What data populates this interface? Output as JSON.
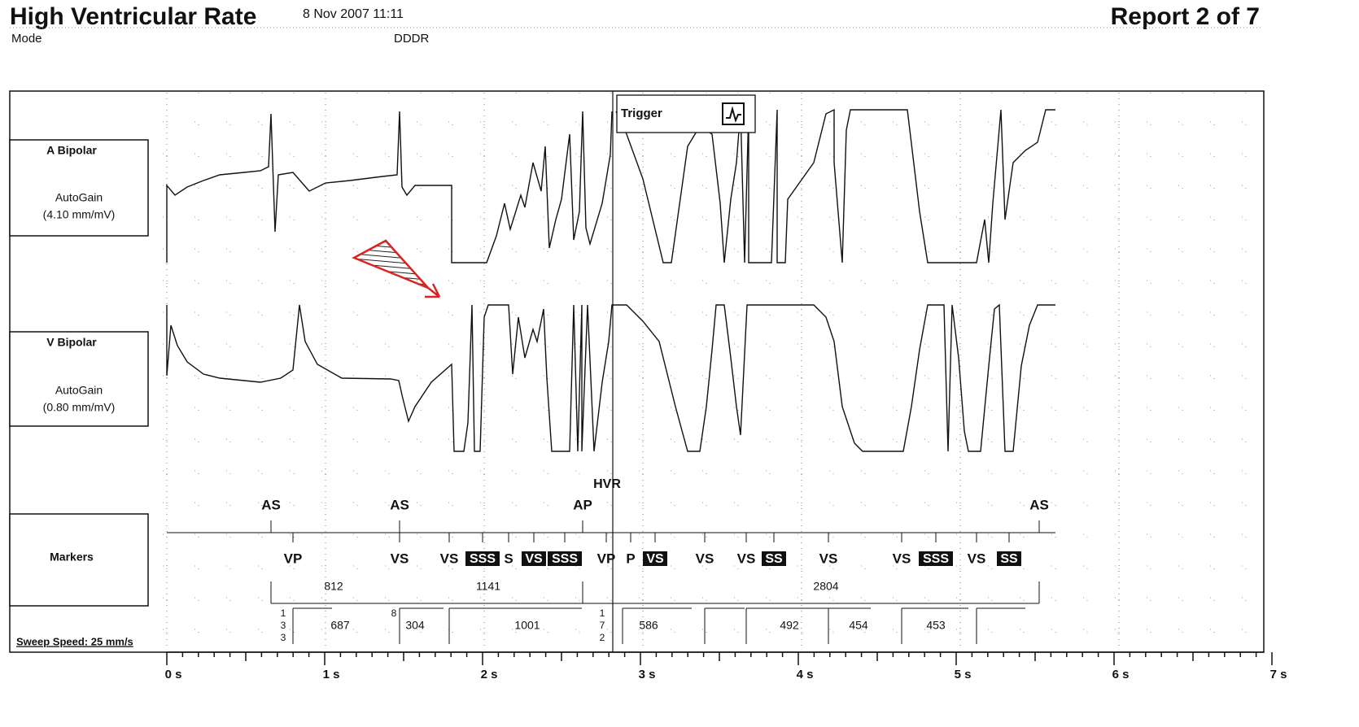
{
  "header": {
    "title": "High Ventricular Rate",
    "datetime": "8 Nov 2007 11:11",
    "report": "Report 2 of 7",
    "mode_label": "Mode",
    "mode": "DDDR"
  },
  "channels": [
    {
      "name": "A Bipolar",
      "gain": "AutoGain",
      "scale": "(4.10 mm/mV)"
    },
    {
      "name": "V Bipolar",
      "gain": "AutoGain",
      "scale": "(0.80 mm/mV)"
    },
    {
      "name": "Markers"
    }
  ],
  "trigger": "Trigger",
  "hvr": "HVR",
  "atrial_markers": [
    "AS",
    "AS",
    "AP",
    "AS"
  ],
  "ventricular_markers": [
    {
      "label": "VP",
      "boxed": false
    },
    {
      "label": "VS",
      "boxed": false
    },
    {
      "label": "VS",
      "boxed": false
    },
    {
      "label": "SSS",
      "boxed": true
    },
    {
      "label": "S",
      "boxed": false
    },
    {
      "label": "VS",
      "boxed": true
    },
    {
      "label": "SSS",
      "boxed": true
    },
    {
      "label": "VP",
      "boxed": false
    },
    {
      "label": "P",
      "boxed": false
    },
    {
      "label": "VS",
      "boxed": true
    },
    {
      "label": "VS",
      "boxed": false
    },
    {
      "label": "VS",
      "boxed": false
    },
    {
      "label": "SS",
      "boxed": true
    },
    {
      "label": "VS",
      "boxed": false
    },
    {
      "label": "VS",
      "boxed": false
    },
    {
      "label": "SSS",
      "boxed": true
    },
    {
      "label": "VS",
      "boxed": false
    },
    {
      "label": "SS",
      "boxed": true
    }
  ],
  "v_intervals": [
    812,
    1141,
    2804
  ],
  "a_intervals": [
    687,
    304,
    1001,
    586,
    492,
    454,
    453
  ],
  "stack_labels": [
    [
      "1",
      "3",
      "3"
    ],
    [
      "8"
    ],
    [
      "1",
      "7",
      "2"
    ]
  ],
  "sweep_speed": "Sweep Speed: 25 mm/s",
  "time_axis": [
    "0 s",
    "1 s",
    "2 s",
    "3 s",
    "4 s",
    "5 s",
    "6 s",
    "7 s"
  ]
}
